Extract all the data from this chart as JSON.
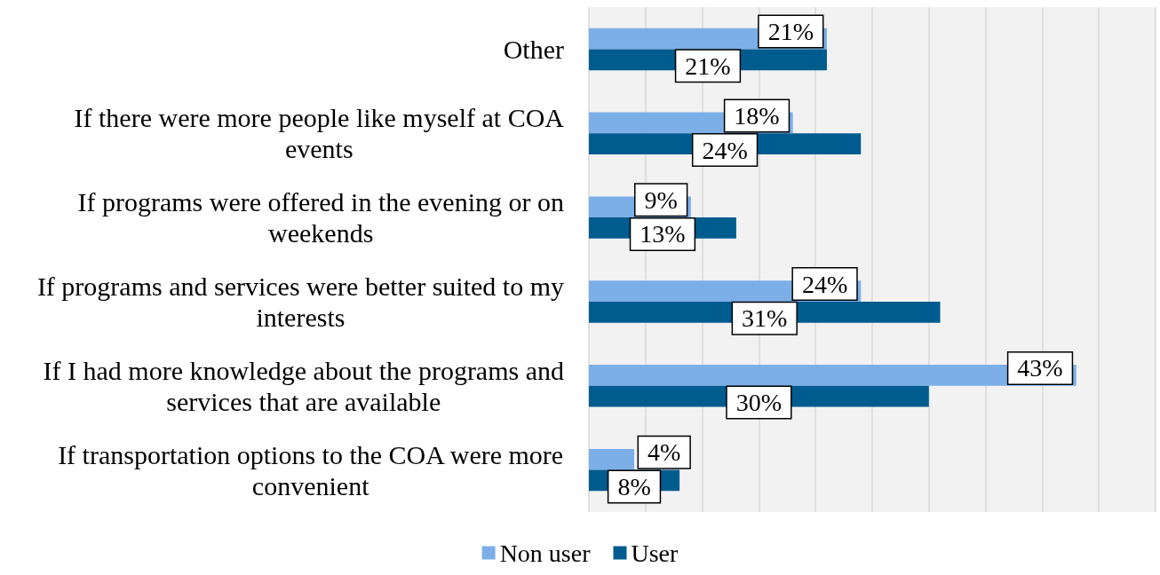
{
  "chart_data": {
    "type": "bar",
    "orientation": "horizontal",
    "categories": [
      "Other",
      "If there were more people like myself at COA events",
      "If programs were offered in the evening or on weekends",
      "If programs and services were better suited to my interests",
      "If I had more knowledge about the programs and services that are available",
      "If transportation options to the COA were more convenient"
    ],
    "series": [
      {
        "name": "Non user",
        "color": "#7cafe8",
        "values": [
          21,
          18,
          9,
          24,
          43,
          4
        ],
        "value_labels": [
          "21%",
          "18%",
          "9%",
          "24%",
          "43%",
          "4%"
        ]
      },
      {
        "name": "User",
        "color": "#005b8e",
        "values": [
          21,
          24,
          13,
          31,
          30,
          8
        ],
        "value_labels": [
          "21%",
          "24%",
          "13%",
          "31%",
          "30%",
          "8%"
        ]
      }
    ],
    "xlim": [
      0,
      50
    ],
    "xticks": [
      {
        "value": 0,
        "label": null
      },
      {
        "value": 5,
        "label": null
      },
      {
        "value": 10,
        "label": null
      },
      {
        "value": 15,
        "label": null
      },
      {
        "value": 20,
        "label": null
      },
      {
        "value": 25,
        "label": null
      },
      {
        "value": 30,
        "label": null
      },
      {
        "value": 35,
        "label": null
      },
      {
        "value": 40,
        "label": null
      },
      {
        "value": 45,
        "label": null
      },
      {
        "value": 50,
        "label": null
      }
    ],
    "tick_labels": "y",
    "grid": "x",
    "legend": "bottom"
  }
}
